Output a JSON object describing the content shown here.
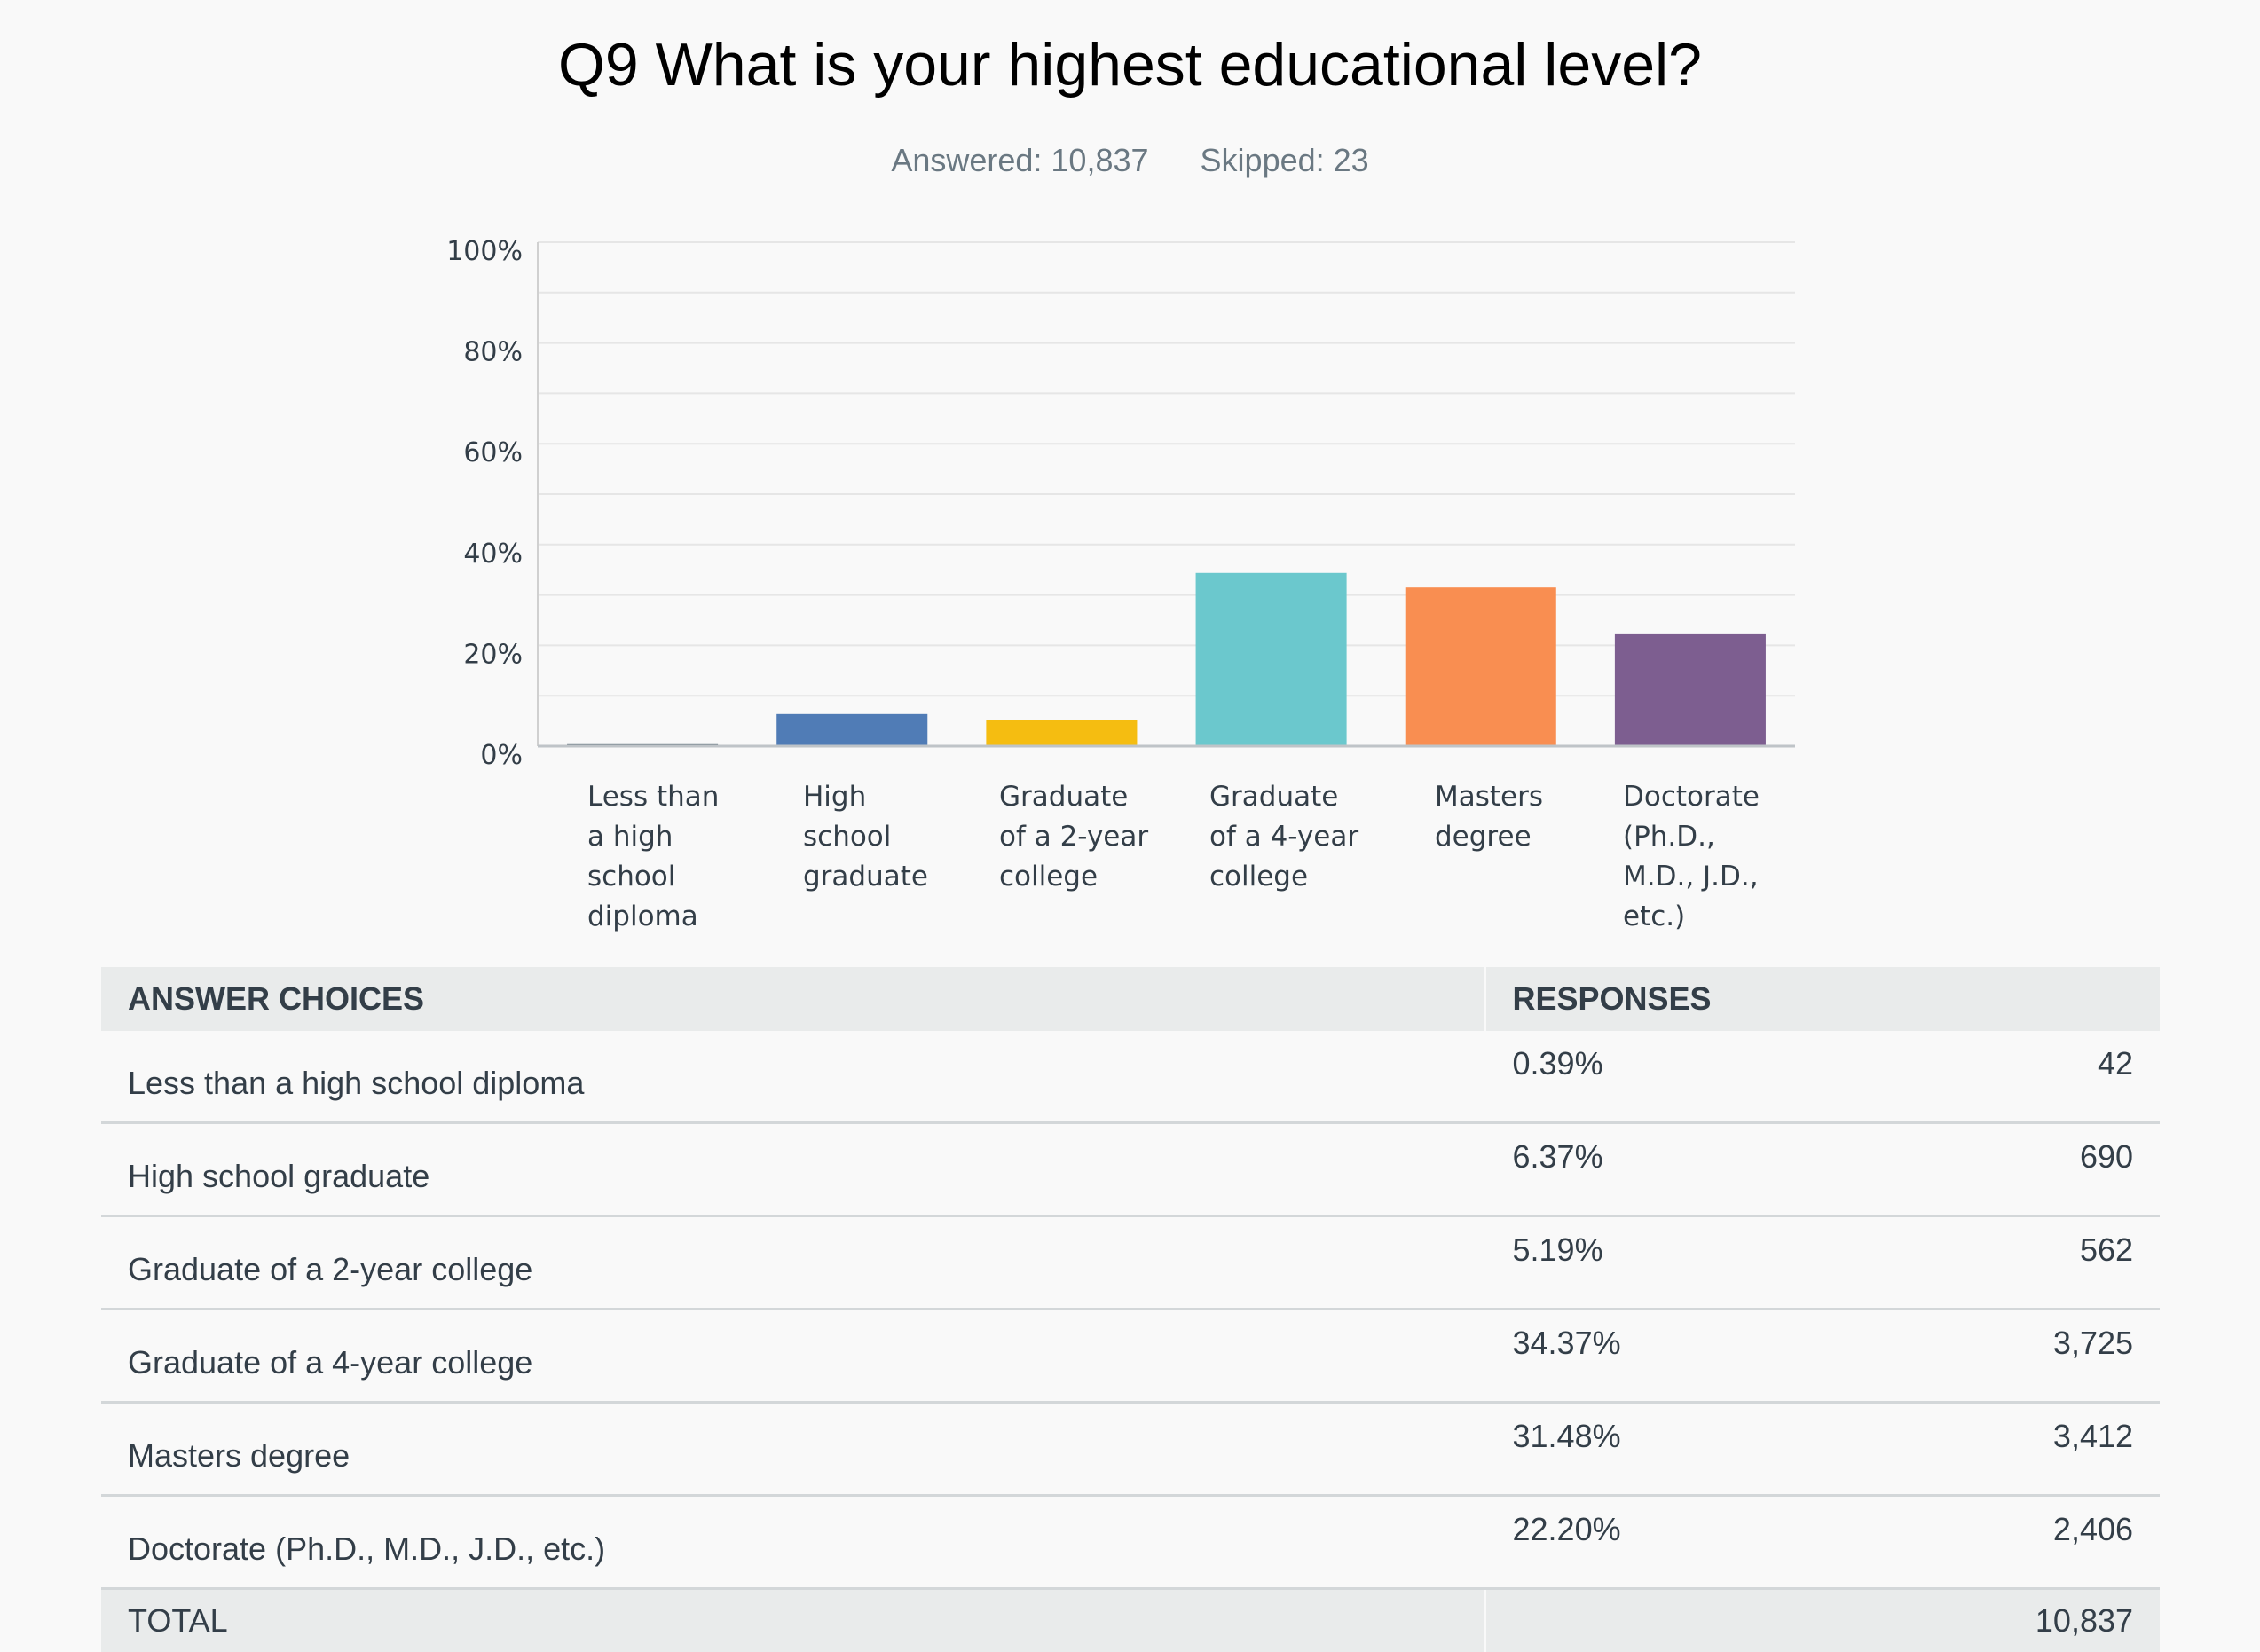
{
  "title": "Q9 What is your highest educational level?",
  "answered_label": "Answered: 10,837",
  "skipped_label": "Skipped: 23",
  "chart_data": {
    "type": "bar",
    "title": "Q9 What is your highest educational level?",
    "categories": [
      "Less than a high school diploma",
      "High school graduate",
      "Graduate of a 2-year college",
      "Graduate of a 4-year college",
      "Masters degree",
      "Doctorate (Ph.D., M.D., J.D., etc.)"
    ],
    "category_label_lines": [
      [
        "Less than",
        "a high",
        "school",
        "diploma"
      ],
      [
        "High",
        "school",
        "graduate"
      ],
      [
        "Graduate",
        "of a 2-year",
        "college"
      ],
      [
        "Graduate",
        "of a 4-year",
        "college"
      ],
      [
        "Masters",
        "degree"
      ],
      [
        "Doctorate",
        "(Ph.D.,",
        "M.D., J.D.,",
        "etc.)"
      ]
    ],
    "values": [
      0.39,
      6.37,
      5.19,
      34.37,
      31.48,
      22.2
    ],
    "colors": [
      "#6a7882",
      "#507cb6",
      "#f5bd11",
      "#6bc8cd",
      "#f98e51",
      "#7d5e90"
    ],
    "ylim": [
      0,
      100
    ],
    "yticks": [
      0,
      20,
      40,
      60,
      80,
      100
    ],
    "ytick_labels": [
      "0%",
      "20%",
      "40%",
      "60%",
      "80%",
      "100%"
    ],
    "xlabel": "",
    "ylabel": "",
    "grid": true,
    "legend": "none"
  },
  "table": {
    "header_choices": "ANSWER CHOICES",
    "header_responses": "RESPONSES",
    "rows": [
      {
        "choice": "Less than a high school diploma",
        "percent": "0.39%",
        "count": "42"
      },
      {
        "choice": "High school graduate",
        "percent": "6.37%",
        "count": "690"
      },
      {
        "choice": "Graduate of a 2-year college",
        "percent": "5.19%",
        "count": "562"
      },
      {
        "choice": "Graduate of a 4-year college",
        "percent": "34.37%",
        "count": "3,725"
      },
      {
        "choice": "Masters degree",
        "percent": "31.48%",
        "count": "3,412"
      },
      {
        "choice": "Doctorate (Ph.D., M.D., J.D., etc.)",
        "percent": "22.20%",
        "count": "2,406"
      }
    ],
    "total_label": "TOTAL",
    "total_count": "10,837"
  }
}
